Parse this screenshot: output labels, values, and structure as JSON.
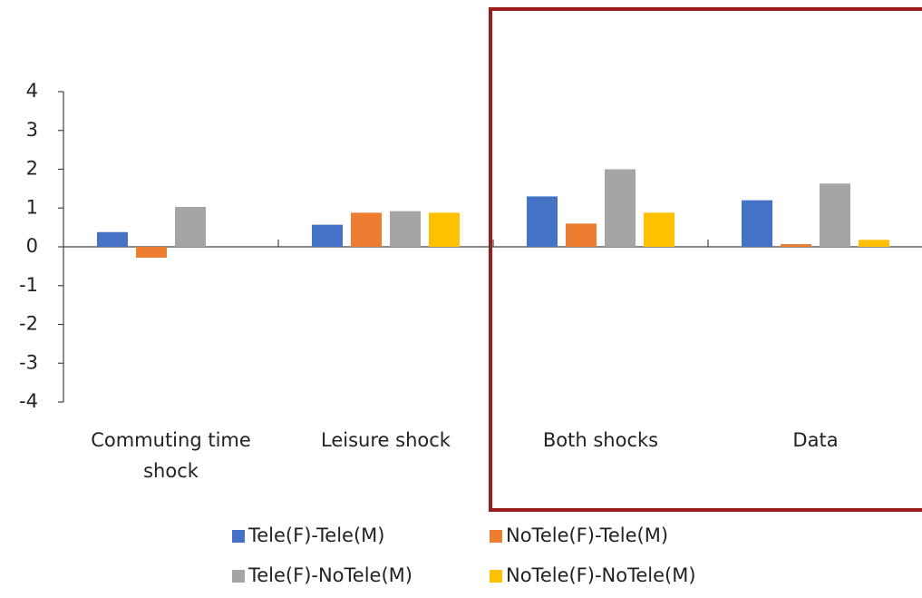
{
  "chart_data": {
    "type": "bar",
    "categories": [
      "Commuting time shock",
      "Leisure shock",
      "Both shocks",
      "Data"
    ],
    "series": [
      {
        "name": "Tele(F)-Tele(M)",
        "color": "#4472c4",
        "values": [
          0.38,
          0.57,
          1.3,
          1.2
        ]
      },
      {
        "name": "NoTele(F)-Tele(M)",
        "color": "#ed7d31",
        "values": [
          -0.28,
          0.88,
          0.6,
          0.07
        ]
      },
      {
        "name": "Tele(F)-NoTele(M)",
        "color": "#a5a5a5",
        "values": [
          1.03,
          0.92,
          2.0,
          1.63
        ]
      },
      {
        "name": "NoTele(F)-NoTele(M)",
        "color": "#ffc000",
        "values": [
          null,
          0.88,
          0.88,
          0.18
        ]
      }
    ],
    "ylim": [
      -4,
      4
    ],
    "yticks": [
      -4,
      -3,
      -2,
      -1,
      0,
      1,
      2,
      3,
      4
    ],
    "grid": false
  }
}
